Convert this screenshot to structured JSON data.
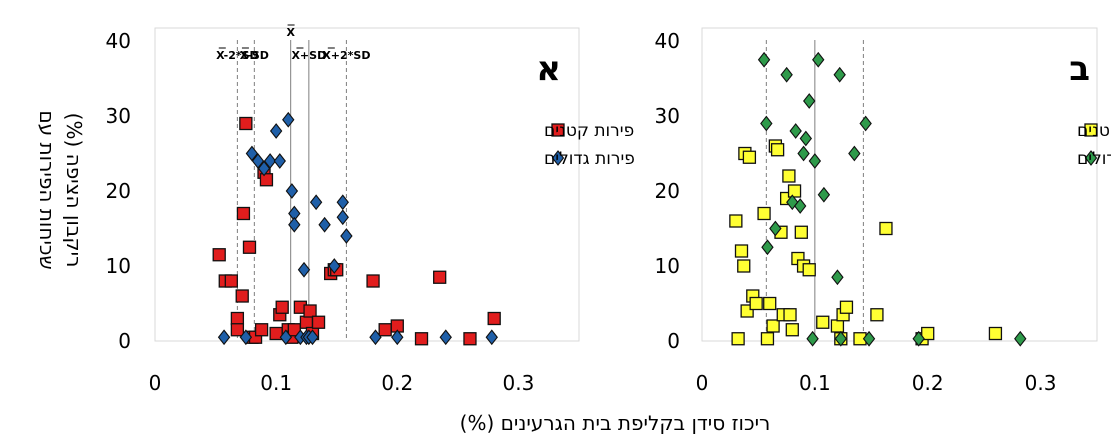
{
  "y_axis_title": [
    "שכיחות הפירות עם",
    "ריקבון הציפה (%)"
  ],
  "x_axis_title": "ריכוז סידן בקליפת בית הגרעינים (%)",
  "colors": {
    "small_fill": "#e11d1d",
    "large_fill": "#1f5fa8",
    "small_fill_b": "#ffff33",
    "large_fill_b": "#2e9a4a",
    "marker_stroke": "#111111",
    "ref_line": "#7f7f7f"
  },
  "chart_data": [
    {
      "type": "scatter",
      "panel": "א",
      "xlim": [
        0,
        0.35
      ],
      "ylim": [
        0,
        40
      ],
      "xticks": [
        "0",
        "0.1",
        "0.2",
        "0.3"
      ],
      "yticks": [
        "0",
        "10",
        "20",
        "30",
        "40"
      ],
      "legend_position": "right",
      "reference_lines": [
        {
          "label": "X-2*SD",
          "x": 0.068,
          "style": "dashed"
        },
        {
          "label": "X-SD",
          "x": 0.082,
          "style": "dashed"
        },
        {
          "label": "X",
          "x": 0.112,
          "style": "solid"
        },
        {
          "label": "X+SD",
          "x": 0.127,
          "style": "solid"
        },
        {
          "label": "X+2*SD",
          "x": 0.158,
          "style": "dashed"
        }
      ],
      "series": [
        {
          "name": "פירות קטנים",
          "marker": "square",
          "points": [
            [
              0.053,
              11.5
            ],
            [
              0.058,
              8.0
            ],
            [
              0.063,
              8.0
            ],
            [
              0.068,
              3.0
            ],
            [
              0.068,
              1.5
            ],
            [
              0.072,
              6.0
            ],
            [
              0.073,
              17.0
            ],
            [
              0.075,
              29.0
            ],
            [
              0.078,
              12.5
            ],
            [
              0.08,
              0.5
            ],
            [
              0.083,
              0.5
            ],
            [
              0.088,
              1.5
            ],
            [
              0.09,
              22.5
            ],
            [
              0.092,
              21.5
            ],
            [
              0.1,
              1.0
            ],
            [
              0.103,
              3.5
            ],
            [
              0.105,
              4.5
            ],
            [
              0.11,
              1.5
            ],
            [
              0.113,
              0.5
            ],
            [
              0.115,
              1.5
            ],
            [
              0.12,
              4.5
            ],
            [
              0.125,
              2.5
            ],
            [
              0.128,
              4.0
            ],
            [
              0.13,
              1.0
            ],
            [
              0.135,
              2.5
            ],
            [
              0.145,
              9.0
            ],
            [
              0.148,
              9.5
            ],
            [
              0.15,
              9.5
            ],
            [
              0.18,
              8.0
            ],
            [
              0.19,
              1.5
            ],
            [
              0.2,
              2.0
            ],
            [
              0.22,
              0.3
            ],
            [
              0.235,
              8.5
            ],
            [
              0.26,
              0.3
            ],
            [
              0.28,
              3.0
            ]
          ]
        },
        {
          "name": "פירות גדולים",
          "marker": "diamond",
          "points": [
            [
              0.057,
              0.5
            ],
            [
              0.075,
              0.5
            ],
            [
              0.08,
              25.0
            ],
            [
              0.085,
              24.0
            ],
            [
              0.09,
              23.0
            ],
            [
              0.095,
              24.0
            ],
            [
              0.1,
              28.0
            ],
            [
              0.103,
              24.0
            ],
            [
              0.108,
              0.5
            ],
            [
              0.11,
              29.5
            ],
            [
              0.113,
              20.0
            ],
            [
              0.115,
              17.0
            ],
            [
              0.115,
              15.5
            ],
            [
              0.12,
              0.5
            ],
            [
              0.123,
              9.5
            ],
            [
              0.125,
              0.5
            ],
            [
              0.127,
              0.5
            ],
            [
              0.13,
              0.5
            ],
            [
              0.133,
              18.5
            ],
            [
              0.14,
              15.5
            ],
            [
              0.148,
              10.0
            ],
            [
              0.155,
              18.5
            ],
            [
              0.155,
              16.5
            ],
            [
              0.158,
              14.0
            ],
            [
              0.182,
              0.5
            ],
            [
              0.2,
              0.5
            ],
            [
              0.24,
              0.5
            ],
            [
              0.278,
              0.5
            ]
          ]
        }
      ]
    },
    {
      "type": "scatter",
      "panel": "ב",
      "xlim": [
        0,
        0.35
      ],
      "ylim": [
        0,
        40
      ],
      "xticks": [
        "0",
        "0.1",
        "0.2",
        "0.3"
      ],
      "yticks": [
        "0",
        "10",
        "20",
        "30",
        "40"
      ],
      "legend_position": "right",
      "reference_lines": [
        {
          "x": 0.057,
          "style": "dashed"
        },
        {
          "x": 0.1,
          "style": "solid"
        },
        {
          "x": 0.143,
          "style": "dashed"
        }
      ],
      "series": [
        {
          "name": "פירות קטנים",
          "marker": "square",
          "points": [
            [
              0.03,
              16.0
            ],
            [
              0.032,
              0.3
            ],
            [
              0.035,
              12.0
            ],
            [
              0.037,
              10.0
            ],
            [
              0.038,
              25.0
            ],
            [
              0.04,
              4.0
            ],
            [
              0.042,
              24.5
            ],
            [
              0.045,
              6.0
            ],
            [
              0.048,
              5.0
            ],
            [
              0.055,
              17.0
            ],
            [
              0.058,
              0.3
            ],
            [
              0.06,
              5.0
            ],
            [
              0.063,
              2.0
            ],
            [
              0.065,
              26.0
            ],
            [
              0.067,
              25.5
            ],
            [
              0.07,
              14.5
            ],
            [
              0.072,
              3.5
            ],
            [
              0.075,
              19.0
            ],
            [
              0.077,
              22.0
            ],
            [
              0.078,
              3.5
            ],
            [
              0.08,
              1.5
            ],
            [
              0.082,
              20.0
            ],
            [
              0.085,
              11.0
            ],
            [
              0.088,
              14.5
            ],
            [
              0.09,
              10.0
            ],
            [
              0.095,
              9.5
            ],
            [
              0.107,
              2.5
            ],
            [
              0.12,
              2.0
            ],
            [
              0.123,
              0.3
            ],
            [
              0.125,
              3.5
            ],
            [
              0.128,
              4.5
            ],
            [
              0.14,
              0.3
            ],
            [
              0.155,
              3.5
            ],
            [
              0.163,
              15.0
            ],
            [
              0.195,
              0.3
            ],
            [
              0.2,
              1.0
            ],
            [
              0.26,
              1.0
            ]
          ]
        },
        {
          "name": "פירות גדולים",
          "marker": "diamond",
          "points": [
            [
              0.055,
              37.5
            ],
            [
              0.057,
              29.0
            ],
            [
              0.058,
              12.5
            ],
            [
              0.065,
              15.0
            ],
            [
              0.075,
              35.5
            ],
            [
              0.08,
              18.5
            ],
            [
              0.083,
              28.0
            ],
            [
              0.087,
              18.0
            ],
            [
              0.09,
              25.0
            ],
            [
              0.092,
              27.0
            ],
            [
              0.095,
              32.0
            ],
            [
              0.098,
              0.3
            ],
            [
              0.1,
              24.0
            ],
            [
              0.103,
              37.5
            ],
            [
              0.108,
              19.5
            ],
            [
              0.12,
              8.5
            ],
            [
              0.122,
              35.5
            ],
            [
              0.123,
              0.3
            ],
            [
              0.135,
              25.0
            ],
            [
              0.145,
              29.0
            ],
            [
              0.148,
              0.3
            ],
            [
              0.192,
              0.3
            ],
            [
              0.282,
              0.3
            ]
          ]
        }
      ]
    }
  ]
}
